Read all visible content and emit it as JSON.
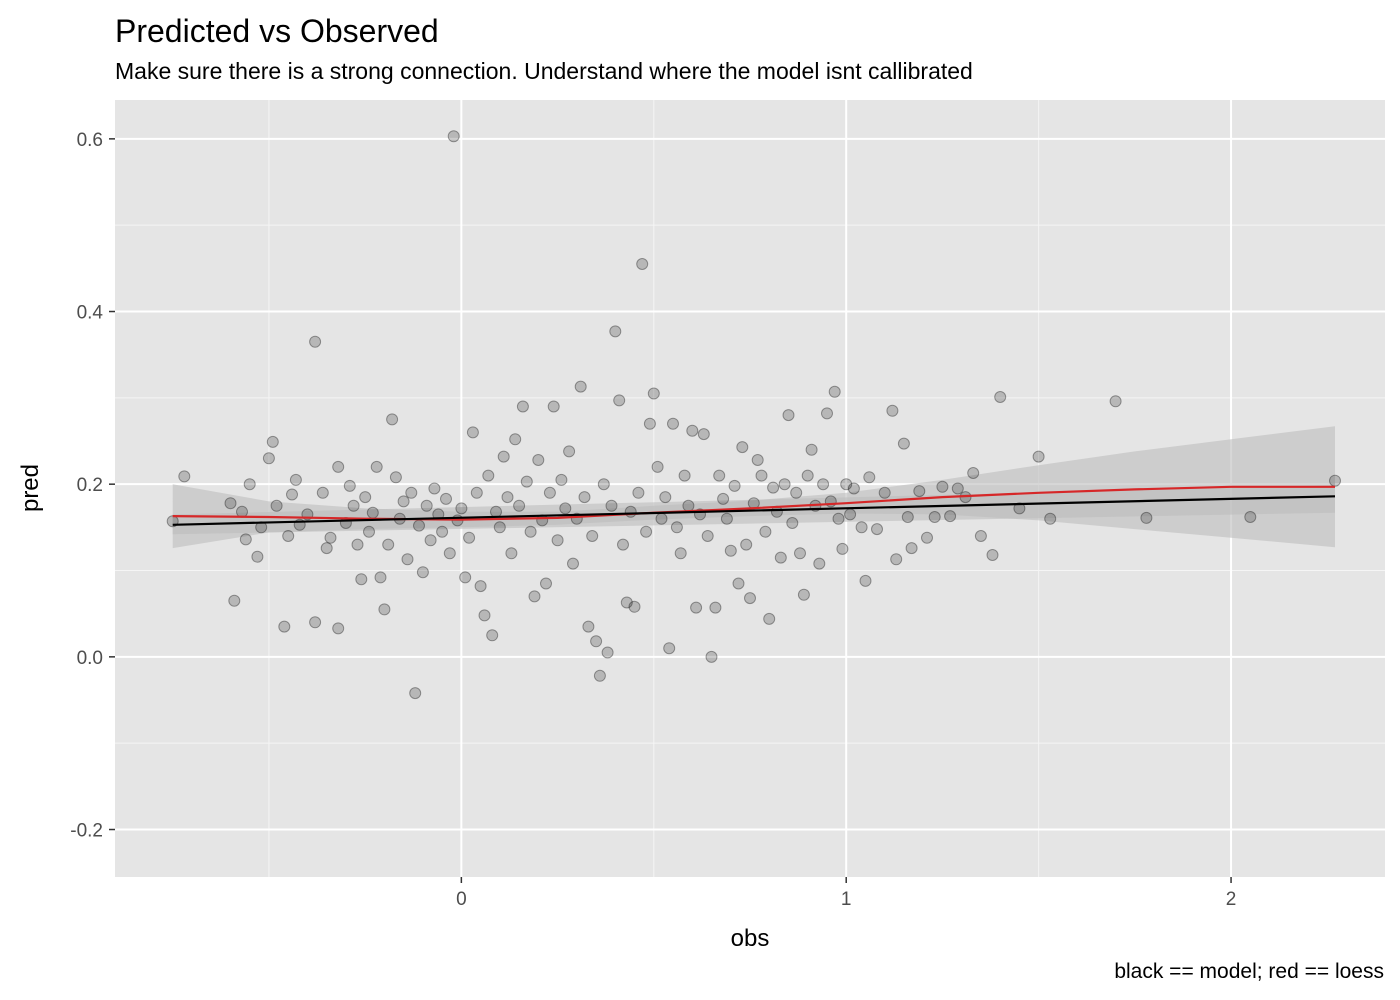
{
  "chart_data": {
    "type": "scatter",
    "title": "Predicted vs Observed",
    "subtitle": "Make sure there is a strong connection. Understand where the model isnt callibrated",
    "xlabel": "obs",
    "ylabel": "pred",
    "caption": "black == model; red == loess",
    "xlim": [
      -0.9,
      2.4
    ],
    "ylim": [
      -0.255,
      0.645
    ],
    "x_ticks": [
      {
        "value": 0,
        "label": "0"
      },
      {
        "value": 1,
        "label": "1"
      },
      {
        "value": 2,
        "label": "2"
      }
    ],
    "y_ticks": [
      {
        "value": -0.2,
        "label": "-0.2"
      },
      {
        "value": 0.0,
        "label": "0.0"
      },
      {
        "value": 0.2,
        "label": "0.2"
      },
      {
        "value": 0.4,
        "label": "0.4"
      },
      {
        "value": 0.6,
        "label": "0.6"
      }
    ],
    "grid": true,
    "panel_color": "#e5e5e5",
    "point_color": "#000000",
    "point_alpha": 0.2,
    "model_line_color": "#000000",
    "loess_line_color": "#d62728",
    "ribbon_color": "#bdbdbd",
    "points": [
      [
        -0.75,
        0.157
      ],
      [
        -0.72,
        0.209
      ],
      [
        -0.6,
        0.178
      ],
      [
        -0.59,
        0.065
      ],
      [
        -0.57,
        0.168
      ],
      [
        -0.56,
        0.136
      ],
      [
        -0.55,
        0.2
      ],
      [
        -0.53,
        0.116
      ],
      [
        -0.52,
        0.15
      ],
      [
        -0.5,
        0.23
      ],
      [
        -0.49,
        0.249
      ],
      [
        -0.48,
        0.175
      ],
      [
        -0.46,
        0.035
      ],
      [
        -0.45,
        0.14
      ],
      [
        -0.44,
        0.188
      ],
      [
        -0.43,
        0.205
      ],
      [
        -0.42,
        0.153
      ],
      [
        -0.4,
        0.165
      ],
      [
        -0.38,
        0.365
      ],
      [
        -0.38,
        0.04
      ],
      [
        -0.36,
        0.19
      ],
      [
        -0.35,
        0.126
      ],
      [
        -0.34,
        0.138
      ],
      [
        -0.32,
        0.22
      ],
      [
        -0.32,
        0.033
      ],
      [
        -0.3,
        0.155
      ],
      [
        -0.29,
        0.198
      ],
      [
        -0.28,
        0.175
      ],
      [
        -0.27,
        0.13
      ],
      [
        -0.26,
        0.09
      ],
      [
        -0.25,
        0.185
      ],
      [
        -0.24,
        0.145
      ],
      [
        -0.23,
        0.167
      ],
      [
        -0.22,
        0.22
      ],
      [
        -0.21,
        0.092
      ],
      [
        -0.2,
        0.055
      ],
      [
        -0.19,
        0.13
      ],
      [
        -0.18,
        0.275
      ],
      [
        -0.17,
        0.208
      ],
      [
        -0.16,
        0.16
      ],
      [
        -0.15,
        0.18
      ],
      [
        -0.14,
        0.113
      ],
      [
        -0.13,
        0.19
      ],
      [
        -0.12,
        -0.042
      ],
      [
        -0.11,
        0.152
      ],
      [
        -0.1,
        0.098
      ],
      [
        -0.09,
        0.175
      ],
      [
        -0.08,
        0.135
      ],
      [
        -0.07,
        0.195
      ],
      [
        -0.06,
        0.165
      ],
      [
        -0.05,
        0.145
      ],
      [
        -0.04,
        0.183
      ],
      [
        -0.03,
        0.12
      ],
      [
        -0.02,
        0.603
      ],
      [
        -0.01,
        0.158
      ],
      [
        0.0,
        0.172
      ],
      [
        0.01,
        0.092
      ],
      [
        0.02,
        0.138
      ],
      [
        0.03,
        0.26
      ],
      [
        0.04,
        0.19
      ],
      [
        0.05,
        0.082
      ],
      [
        0.06,
        0.048
      ],
      [
        0.07,
        0.21
      ],
      [
        0.08,
        0.025
      ],
      [
        0.09,
        0.168
      ],
      [
        0.1,
        0.15
      ],
      [
        0.11,
        0.232
      ],
      [
        0.12,
        0.185
      ],
      [
        0.13,
        0.12
      ],
      [
        0.14,
        0.252
      ],
      [
        0.15,
        0.175
      ],
      [
        0.16,
        0.29
      ],
      [
        0.17,
        0.203
      ],
      [
        0.18,
        0.145
      ],
      [
        0.19,
        0.07
      ],
      [
        0.2,
        0.228
      ],
      [
        0.21,
        0.158
      ],
      [
        0.22,
        0.085
      ],
      [
        0.23,
        0.19
      ],
      [
        0.24,
        0.29
      ],
      [
        0.25,
        0.135
      ],
      [
        0.26,
        0.205
      ],
      [
        0.27,
        0.172
      ],
      [
        0.28,
        0.238
      ],
      [
        0.29,
        0.108
      ],
      [
        0.3,
        0.16
      ],
      [
        0.31,
        0.313
      ],
      [
        0.32,
        0.185
      ],
      [
        0.33,
        0.035
      ],
      [
        0.34,
        0.14
      ],
      [
        0.35,
        0.018
      ],
      [
        0.36,
        -0.022
      ],
      [
        0.37,
        0.2
      ],
      [
        0.38,
        0.005
      ],
      [
        0.39,
        0.175
      ],
      [
        0.4,
        0.377
      ],
      [
        0.41,
        0.297
      ],
      [
        0.42,
        0.13
      ],
      [
        0.43,
        0.063
      ],
      [
        0.44,
        0.168
      ],
      [
        0.45,
        0.058
      ],
      [
        0.46,
        0.19
      ],
      [
        0.47,
        0.455
      ],
      [
        0.48,
        0.145
      ],
      [
        0.49,
        0.27
      ],
      [
        0.5,
        0.305
      ],
      [
        0.51,
        0.22
      ],
      [
        0.52,
        0.16
      ],
      [
        0.53,
        0.185
      ],
      [
        0.54,
        0.01
      ],
      [
        0.55,
        0.27
      ],
      [
        0.56,
        0.15
      ],
      [
        0.57,
        0.12
      ],
      [
        0.58,
        0.21
      ],
      [
        0.59,
        0.175
      ],
      [
        0.6,
        0.262
      ],
      [
        0.61,
        0.057
      ],
      [
        0.62,
        0.165
      ],
      [
        0.63,
        0.258
      ],
      [
        0.64,
        0.14
      ],
      [
        0.65,
        0.0
      ],
      [
        0.66,
        0.057
      ],
      [
        0.67,
        0.21
      ],
      [
        0.68,
        0.183
      ],
      [
        0.69,
        0.16
      ],
      [
        0.7,
        0.123
      ],
      [
        0.71,
        0.198
      ],
      [
        0.72,
        0.085
      ],
      [
        0.73,
        0.243
      ],
      [
        0.74,
        0.13
      ],
      [
        0.75,
        0.068
      ],
      [
        0.76,
        0.178
      ],
      [
        0.77,
        0.228
      ],
      [
        0.78,
        0.21
      ],
      [
        0.79,
        0.145
      ],
      [
        0.8,
        0.044
      ],
      [
        0.81,
        0.196
      ],
      [
        0.82,
        0.168
      ],
      [
        0.83,
        0.115
      ],
      [
        0.84,
        0.2
      ],
      [
        0.85,
        0.28
      ],
      [
        0.86,
        0.155
      ],
      [
        0.87,
        0.19
      ],
      [
        0.88,
        0.12
      ],
      [
        0.89,
        0.072
      ],
      [
        0.9,
        0.21
      ],
      [
        0.91,
        0.24
      ],
      [
        0.92,
        0.175
      ],
      [
        0.93,
        0.108
      ],
      [
        0.94,
        0.2
      ],
      [
        0.95,
        0.282
      ],
      [
        0.96,
        0.18
      ],
      [
        0.97,
        0.307
      ],
      [
        0.98,
        0.16
      ],
      [
        0.99,
        0.125
      ],
      [
        1.0,
        0.2
      ],
      [
        1.01,
        0.165
      ],
      [
        1.02,
        0.195
      ],
      [
        1.04,
        0.15
      ],
      [
        1.05,
        0.088
      ],
      [
        1.06,
        0.208
      ],
      [
        1.08,
        0.148
      ],
      [
        1.1,
        0.19
      ],
      [
        1.12,
        0.285
      ],
      [
        1.13,
        0.113
      ],
      [
        1.15,
        0.247
      ],
      [
        1.16,
        0.162
      ],
      [
        1.17,
        0.126
      ],
      [
        1.19,
        0.192
      ],
      [
        1.21,
        0.138
      ],
      [
        1.23,
        0.162
      ],
      [
        1.25,
        0.197
      ],
      [
        1.27,
        0.163
      ],
      [
        1.29,
        0.195
      ],
      [
        1.31,
        0.185
      ],
      [
        1.33,
        0.213
      ],
      [
        1.35,
        0.14
      ],
      [
        1.38,
        0.118
      ],
      [
        1.4,
        0.301
      ],
      [
        1.45,
        0.172
      ],
      [
        1.5,
        0.232
      ],
      [
        1.53,
        0.16
      ],
      [
        1.7,
        0.296
      ],
      [
        1.78,
        0.161
      ],
      [
        2.05,
        0.162
      ],
      [
        2.27,
        0.204
      ]
    ],
    "model_line": {
      "x": [
        -0.75,
        2.27
      ],
      "y": [
        0.153,
        0.186
      ]
    },
    "model_band": {
      "x": [
        -0.75,
        2.27
      ],
      "upper": [
        0.165,
        0.199
      ],
      "lower": [
        0.142,
        0.167
      ]
    },
    "loess_line": {
      "x": [
        -0.75,
        -0.5,
        -0.25,
        0.0,
        0.25,
        0.5,
        0.75,
        1.0,
        1.25,
        1.5,
        1.75,
        2.0,
        2.27
      ],
      "y": [
        0.163,
        0.162,
        0.16,
        0.159,
        0.161,
        0.167,
        0.172,
        0.178,
        0.185,
        0.19,
        0.194,
        0.197,
        0.197
      ]
    },
    "loess_band": {
      "x": [
        -0.75,
        -0.5,
        -0.25,
        0.0,
        0.25,
        0.5,
        0.75,
        1.0,
        1.25,
        1.5,
        1.75,
        2.0,
        2.27
      ],
      "upper": [
        0.2,
        0.18,
        0.172,
        0.168,
        0.168,
        0.175,
        0.181,
        0.19,
        0.205,
        0.222,
        0.238,
        0.252,
        0.267
      ],
      "lower": [
        0.126,
        0.144,
        0.148,
        0.15,
        0.153,
        0.159,
        0.163,
        0.166,
        0.165,
        0.158,
        0.148,
        0.138,
        0.127
      ]
    }
  }
}
